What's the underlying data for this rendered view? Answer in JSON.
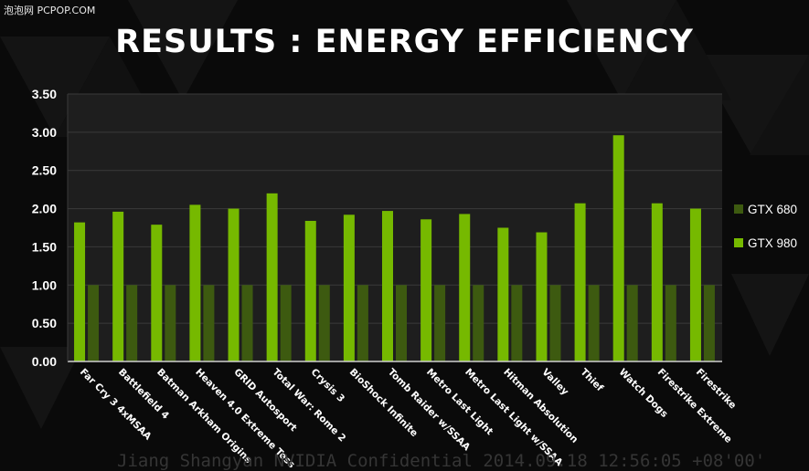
{
  "watermark_top": "泡泡网 PCPOP.COM",
  "watermark_bottom": "Jiang Shangyan NVIDIA Confidential 2014.09.18 12:56:05 +08'00'",
  "colors": {
    "gtx680": "#3d5a10",
    "gtx980": "#76b900",
    "plot_bg": "#1e1e1e",
    "grid": "#3a3a3a",
    "text": "#ffffff"
  },
  "chart_data": {
    "type": "bar",
    "title": "RESULTS : ENERGY EFFICIENCY",
    "xlabel": "",
    "ylabel": "",
    "ylim": [
      0,
      3.5
    ],
    "yticks": [
      "0.00",
      "0.50",
      "1.00",
      "1.50",
      "2.00",
      "2.50",
      "3.00",
      "3.50"
    ],
    "ytick_values": [
      0,
      0.5,
      1.0,
      1.5,
      2.0,
      2.5,
      3.0,
      3.5
    ],
    "grid": true,
    "legend_position": "right",
    "categories": [
      "Far Cry 3 4xMSAA",
      "Battlefield 4",
      "Batman Arkham Origins",
      "Heaven 4.0 Extreme Tess",
      "GRID Autosport",
      "Total War: Rome 2",
      "Crysis 3",
      "BioShock Infinite",
      "Tomb Raider w/SSAA",
      "Metro Last Light",
      "Metro Last Light w/SSAA",
      "Hitman Absolution",
      "Valley",
      "Thief",
      "Watch Dogs",
      "Firestrike Extreme",
      "Firestrike"
    ],
    "series": [
      {
        "name": "GTX 680",
        "values": [
          1.0,
          1.0,
          1.0,
          1.0,
          1.0,
          1.0,
          1.0,
          1.0,
          1.0,
          1.0,
          1.0,
          1.0,
          1.0,
          1.0,
          1.0,
          1.0,
          1.0
        ]
      },
      {
        "name": "GTX 980",
        "values": [
          1.82,
          1.96,
          1.79,
          2.05,
          2.0,
          2.2,
          1.84,
          1.92,
          1.97,
          1.86,
          1.93,
          1.75,
          1.69,
          2.07,
          2.96,
          2.07,
          2.0
        ]
      }
    ]
  }
}
